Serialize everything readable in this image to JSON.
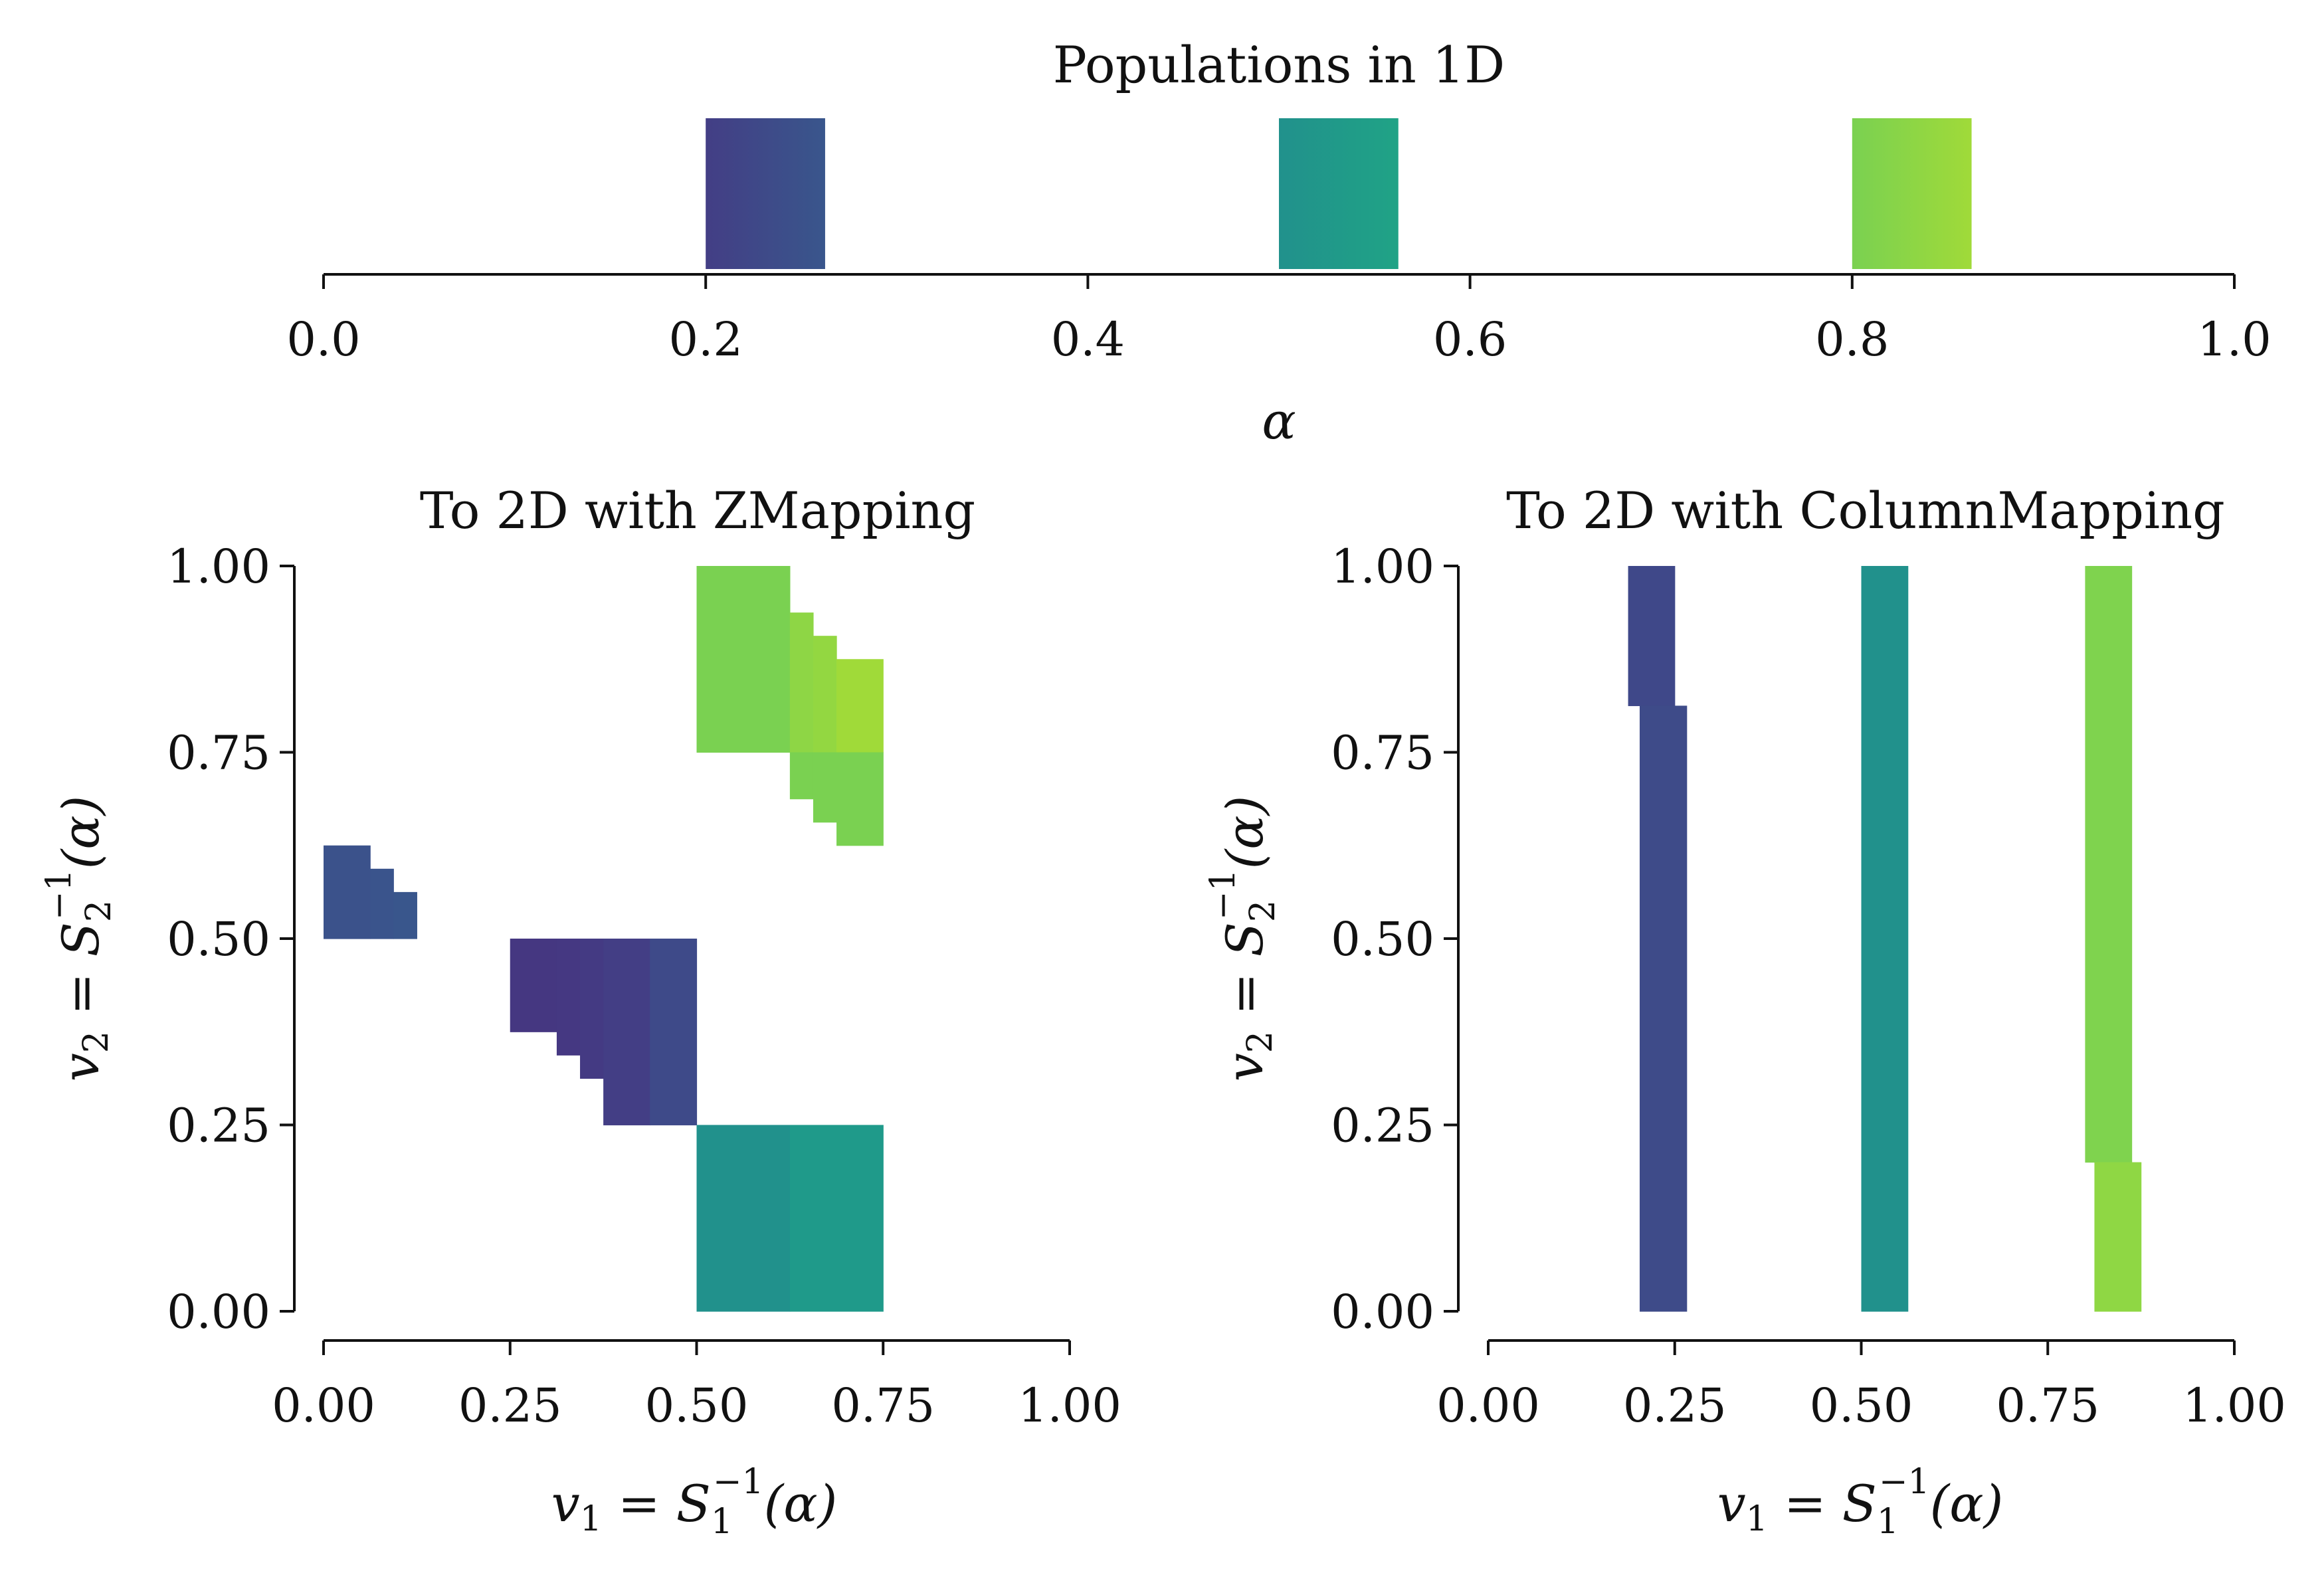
{
  "chart_data": [
    {
      "type": "bar",
      "title": "Populations in 1D",
      "xlabel": "α",
      "ylabel": "",
      "xlim": [
        0,
        1
      ],
      "x_ticks": [
        "0.0",
        "0.2",
        "0.4",
        "0.6",
        "0.8",
        "1.0"
      ],
      "x_tick_values": [
        0,
        0.2,
        0.4,
        0.6,
        0.8,
        1.0
      ],
      "y_axis_visible": false,
      "colormap": "viridis",
      "populations": [
        {
          "start": 0.2,
          "end": 0.2625,
          "color_start": "#433e85",
          "color_end": "#39568c"
        },
        {
          "start": 0.5,
          "end": 0.5625,
          "color_start": "#21918c",
          "color_end": "#20a386"
        },
        {
          "start": 0.8,
          "end": 0.8625,
          "color_start": "#7ad151",
          "color_end": "#a0da39"
        }
      ]
    },
    {
      "type": "heatmap",
      "title": "To 2D with ZMapping",
      "xlabel_base": "v",
      "xlabel_sub": "1",
      "xlabel_mid": " = S",
      "xlabel_sub2": "1",
      "xlabel_sup": "−1",
      "xlabel_tail": "(α)",
      "ylabel_base": "v",
      "ylabel_sub": "2",
      "ylabel_mid": " = S",
      "ylabel_sub2": "2",
      "ylabel_sup": "−1",
      "ylabel_tail": "(α)",
      "xlim": [
        0,
        1
      ],
      "ylim": [
        0,
        1
      ],
      "x_ticks": [
        "0.00",
        "0.25",
        "0.50",
        "0.75",
        "1.00"
      ],
      "y_ticks": [
        "0.00",
        "0.25",
        "0.50",
        "0.75",
        "1.00"
      ],
      "tick_values": [
        0,
        0.25,
        0.5,
        0.75,
        1.0
      ],
      "cells": [
        {
          "x0": 0.0,
          "x1": 0.0625,
          "y0": 0.5,
          "y1": 0.625,
          "color": "#3b528b"
        },
        {
          "x0": 0.0625,
          "x1": 0.09375,
          "y0": 0.5,
          "y1": 0.59375,
          "color": "#3a548c"
        },
        {
          "x0": 0.09375,
          "x1": 0.125,
          "y0": 0.5,
          "y1": 0.5625,
          "color": "#39568c"
        },
        {
          "x0": 0.25,
          "x1": 0.3125,
          "y0": 0.375,
          "y1": 0.5,
          "color": "#453781"
        },
        {
          "x0": 0.3125,
          "x1": 0.34375,
          "y0": 0.34375,
          "y1": 0.5,
          "color": "#453882"
        },
        {
          "x0": 0.34375,
          "x1": 0.375,
          "y0": 0.3125,
          "y1": 0.5,
          "color": "#443a83"
        },
        {
          "x0": 0.375,
          "x1": 0.4375,
          "y0": 0.25,
          "y1": 0.5,
          "color": "#433e85"
        },
        {
          "x0": 0.4375,
          "x1": 0.5,
          "y0": 0.25,
          "y1": 0.5,
          "color": "#3e4a89"
        },
        {
          "x0": 0.5,
          "x1": 0.625,
          "y0": 0.0,
          "y1": 0.25,
          "color": "#21918c"
        },
        {
          "x0": 0.625,
          "x1": 0.75,
          "y0": 0.0,
          "y1": 0.25,
          "color": "#1f9a8a"
        },
        {
          "x0": 0.5,
          "x1": 0.625,
          "y0": 0.75,
          "y1": 1.0,
          "color": "#7ad151"
        },
        {
          "x0": 0.625,
          "x1": 0.65625,
          "y0": 0.75,
          "y1": 0.9375,
          "color": "#8ed645"
        },
        {
          "x0": 0.65625,
          "x1": 0.6875,
          "y0": 0.75,
          "y1": 0.90625,
          "color": "#93d741"
        },
        {
          "x0": 0.6875,
          "x1": 0.75,
          "y0": 0.75,
          "y1": 0.875,
          "color": "#a0da39"
        },
        {
          "x0": 0.625,
          "x1": 0.65625,
          "y0": 0.6875,
          "y1": 0.75,
          "color": "#7ad151"
        },
        {
          "x0": 0.65625,
          "x1": 0.6875,
          "y0": 0.65625,
          "y1": 0.75,
          "color": "#7ad151"
        },
        {
          "x0": 0.6875,
          "x1": 0.75,
          "y0": 0.625,
          "y1": 0.75,
          "color": "#7ad151"
        }
      ]
    },
    {
      "type": "heatmap",
      "title": "To 2D with ColumnMapping",
      "xlabel_base": "v",
      "xlabel_sub": "1",
      "xlabel_mid": " = S",
      "xlabel_sub2": "1",
      "xlabel_sup": "−1",
      "xlabel_tail": "(α)",
      "ylabel_base": "v",
      "ylabel_sub": "2",
      "ylabel_mid": " = S",
      "ylabel_sub2": "2",
      "ylabel_sup": "−1",
      "ylabel_tail": "(α)",
      "xlim": [
        0,
        1
      ],
      "ylim": [
        0,
        1
      ],
      "x_ticks": [
        "0.00",
        "0.25",
        "0.50",
        "0.75",
        "1.00"
      ],
      "y_ticks": [
        "0.00",
        "0.25",
        "0.50",
        "0.75",
        "1.00"
      ],
      "tick_values": [
        0,
        0.25,
        0.5,
        0.75,
        1.0
      ],
      "cells": [
        {
          "x0": 0.1875,
          "x1": 0.25,
          "y0": 0.8125,
          "y1": 1.0,
          "color": "#3f4889"
        },
        {
          "x0": 0.203,
          "x1": 0.266,
          "y0": 0.0,
          "y1": 0.8125,
          "color": "#3e4b89"
        },
        {
          "x0": 0.5,
          "x1": 0.5625,
          "y0": 0.0,
          "y1": 1.0,
          "color": "#21918c"
        },
        {
          "x0": 0.8,
          "x1": 0.8625,
          "y0": 0.2,
          "y1": 1.0,
          "color": "#7fd34e"
        },
        {
          "x0": 0.8125,
          "x1": 0.875,
          "y0": 0.0,
          "y1": 0.2,
          "color": "#8fd744"
        }
      ]
    }
  ]
}
